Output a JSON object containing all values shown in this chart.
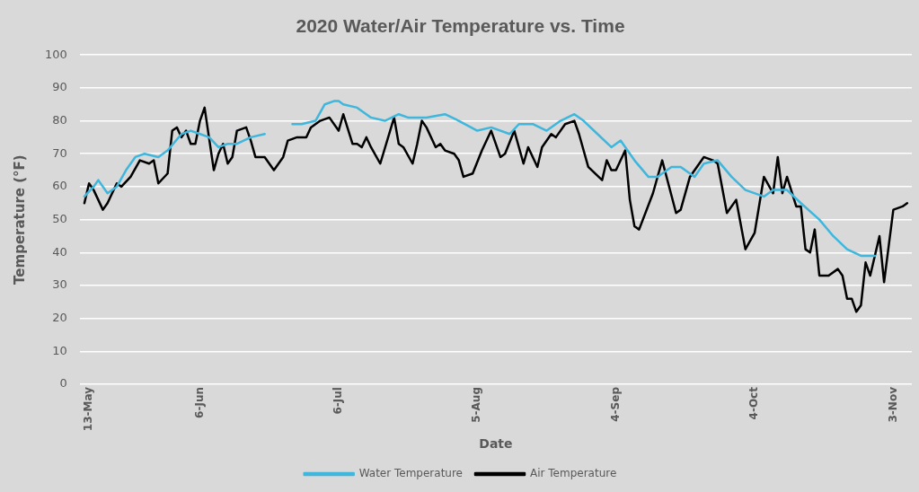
{
  "chart_data": {
    "type": "line",
    "title": "2020 Water/Air Temperature vs. Time",
    "xlabel": "Date",
    "ylabel": "Temperature (°F)",
    "xlim": [
      "2020-05-11",
      "2020-11-07"
    ],
    "xticks": [
      {
        "value": "2020-05-13",
        "label": "13-May"
      },
      {
        "value": "2020-06-06",
        "label": "6-Jun"
      },
      {
        "value": "2020-07-06",
        "label": "6-Jul"
      },
      {
        "value": "2020-08-05",
        "label": "5-Aug"
      },
      {
        "value": "2020-09-04",
        "label": "4-Sep"
      },
      {
        "value": "2020-10-04",
        "label": "4-Oct"
      },
      {
        "value": "2020-11-03",
        "label": "3-Nov"
      }
    ],
    "ylim": [
      0,
      100
    ],
    "yticks": [
      0,
      10,
      20,
      30,
      40,
      50,
      60,
      70,
      80,
      90,
      100
    ],
    "grid": "y",
    "legend": "bottom",
    "marker": "none",
    "line_style": "solid",
    "series": [
      {
        "name": "Water Temperature",
        "color": "#3fb6dc",
        "x": [
          "2020-05-12",
          "2020-05-14",
          "2020-05-15",
          "2020-05-17",
          "2020-05-19",
          "2020-05-21",
          "2020-05-23",
          "2020-05-25",
          "2020-05-28",
          "2020-05-30",
          "2020-06-02",
          "2020-06-04",
          "2020-06-06",
          "2020-06-08",
          "2020-06-10",
          "2020-06-12",
          "2020-06-14",
          "2020-06-17",
          "2020-06-20",
          "2020-06-23",
          "2020-06-26",
          "2020-06-28",
          "2020-07-01",
          "2020-07-03",
          "2020-07-05",
          "2020-07-06",
          "2020-07-07",
          "2020-07-10",
          "2020-07-13",
          "2020-07-16",
          "2020-07-19",
          "2020-07-21",
          "2020-07-25",
          "2020-07-29",
          "2020-08-01",
          "2020-08-05",
          "2020-08-08",
          "2020-08-12",
          "2020-08-14",
          "2020-08-17",
          "2020-08-20",
          "2020-08-23",
          "2020-08-26",
          "2020-08-28",
          "2020-08-31",
          "2020-09-03",
          "2020-09-05",
          "2020-09-08",
          "2020-09-11",
          "2020-09-13",
          "2020-09-16",
          "2020-09-18",
          "2020-09-21",
          "2020-09-23",
          "2020-09-26",
          "2020-09-29",
          "2020-10-02",
          "2020-10-06",
          "2020-10-08",
          "2020-10-11",
          "2020-10-14",
          "2020-10-18",
          "2020-10-21",
          "2020-10-24",
          "2020-10-27",
          "2020-10-30"
        ],
        "values": [
          57,
          60,
          62,
          58,
          60,
          65,
          69,
          70,
          69,
          71,
          76,
          77,
          76,
          75,
          72,
          73,
          73,
          75,
          76,
          null,
          79,
          79,
          80,
          85,
          86,
          86,
          85,
          84,
          81,
          80,
          82,
          81,
          81,
          82,
          80,
          77,
          78,
          76,
          79,
          79,
          77,
          80,
          82,
          80,
          76,
          72,
          74,
          68,
          63,
          63,
          66,
          66,
          63,
          67,
          68,
          63,
          59,
          57,
          59,
          59,
          55,
          50,
          45,
          41,
          39,
          39
        ]
      },
      {
        "name": "Air Temperature",
        "color": "#000000",
        "x": [
          "2020-05-12",
          "2020-05-13",
          "2020-05-14",
          "2020-05-16",
          "2020-05-17",
          "2020-05-19",
          "2020-05-20",
          "2020-05-22",
          "2020-05-24",
          "2020-05-26",
          "2020-05-27",
          "2020-05-28",
          "2020-05-30",
          "2020-05-31",
          "2020-06-01",
          "2020-06-02",
          "2020-06-03",
          "2020-06-04",
          "2020-06-05",
          "2020-06-06",
          "2020-06-07",
          "2020-06-09",
          "2020-06-10",
          "2020-06-11",
          "2020-06-12",
          "2020-06-13",
          "2020-06-14",
          "2020-06-16",
          "2020-06-17",
          "2020-06-18",
          "2020-06-20",
          "2020-06-22",
          "2020-06-24",
          "2020-06-25",
          "2020-06-27",
          "2020-06-29",
          "2020-06-30",
          "2020-07-01",
          "2020-07-02",
          "2020-07-04",
          "2020-07-06",
          "2020-07-07",
          "2020-07-09",
          "2020-07-10",
          "2020-07-11",
          "2020-07-12",
          "2020-07-13",
          "2020-07-15",
          "2020-07-18",
          "2020-07-19",
          "2020-07-20",
          "2020-07-22",
          "2020-07-23",
          "2020-07-24",
          "2020-07-25",
          "2020-07-27",
          "2020-07-28",
          "2020-07-29",
          "2020-07-31",
          "2020-08-01",
          "2020-08-02",
          "2020-08-04",
          "2020-08-06",
          "2020-08-08",
          "2020-08-10",
          "2020-08-11",
          "2020-08-13",
          "2020-08-15",
          "2020-08-16",
          "2020-08-18",
          "2020-08-19",
          "2020-08-21",
          "2020-08-22",
          "2020-08-24",
          "2020-08-26",
          "2020-08-27",
          "2020-08-29",
          "2020-09-01",
          "2020-09-02",
          "2020-09-03",
          "2020-09-04",
          "2020-09-06",
          "2020-09-07",
          "2020-09-08",
          "2020-09-09",
          "2020-09-12",
          "2020-09-14",
          "2020-09-17",
          "2020-09-18",
          "2020-09-20",
          "2020-09-23",
          "2020-09-25",
          "2020-09-26",
          "2020-09-28",
          "2020-09-30",
          "2020-10-02",
          "2020-10-04",
          "2020-10-06",
          "2020-10-08",
          "2020-10-09",
          "2020-10-10",
          "2020-10-11",
          "2020-10-13",
          "2020-10-14",
          "2020-10-15",
          "2020-10-16",
          "2020-10-17",
          "2020-10-18",
          "2020-10-20",
          "2020-10-22",
          "2020-10-23",
          "2020-10-24",
          "2020-10-25",
          "2020-10-26",
          "2020-10-27",
          "2020-10-28",
          "2020-10-29",
          "2020-10-31",
          "2020-11-01",
          "2020-11-03",
          "2020-11-05",
          "2020-11-06"
        ],
        "values": [
          55,
          61,
          59,
          53,
          55,
          61,
          60,
          63,
          68,
          67,
          68,
          61,
          64,
          77,
          78,
          75,
          77,
          73,
          73,
          80,
          84,
          65,
          70,
          73,
          67,
          69,
          77,
          78,
          74,
          69,
          69,
          65,
          69,
          74,
          75,
          75,
          78,
          79,
          80,
          81,
          77,
          82,
          73,
          73,
          72,
          75,
          72,
          67,
          81,
          73,
          72,
          67,
          73,
          80,
          78,
          72,
          73,
          71,
          70,
          68,
          63,
          64,
          71,
          77,
          69,
          70,
          77,
          67,
          72,
          66,
          72,
          76,
          75,
          79,
          80,
          76,
          66,
          62,
          68,
          65,
          65,
          71,
          56,
          48,
          47,
          58,
          68,
          52,
          53,
          63,
          69,
          68,
          67,
          52,
          56,
          41,
          46,
          63,
          58,
          69,
          58,
          63,
          54,
          54,
          41,
          40,
          47,
          33,
          33,
          35,
          33,
          26,
          26,
          22,
          24,
          37,
          33,
          45,
          31,
          53,
          54,
          55
        ]
      }
    ]
  }
}
